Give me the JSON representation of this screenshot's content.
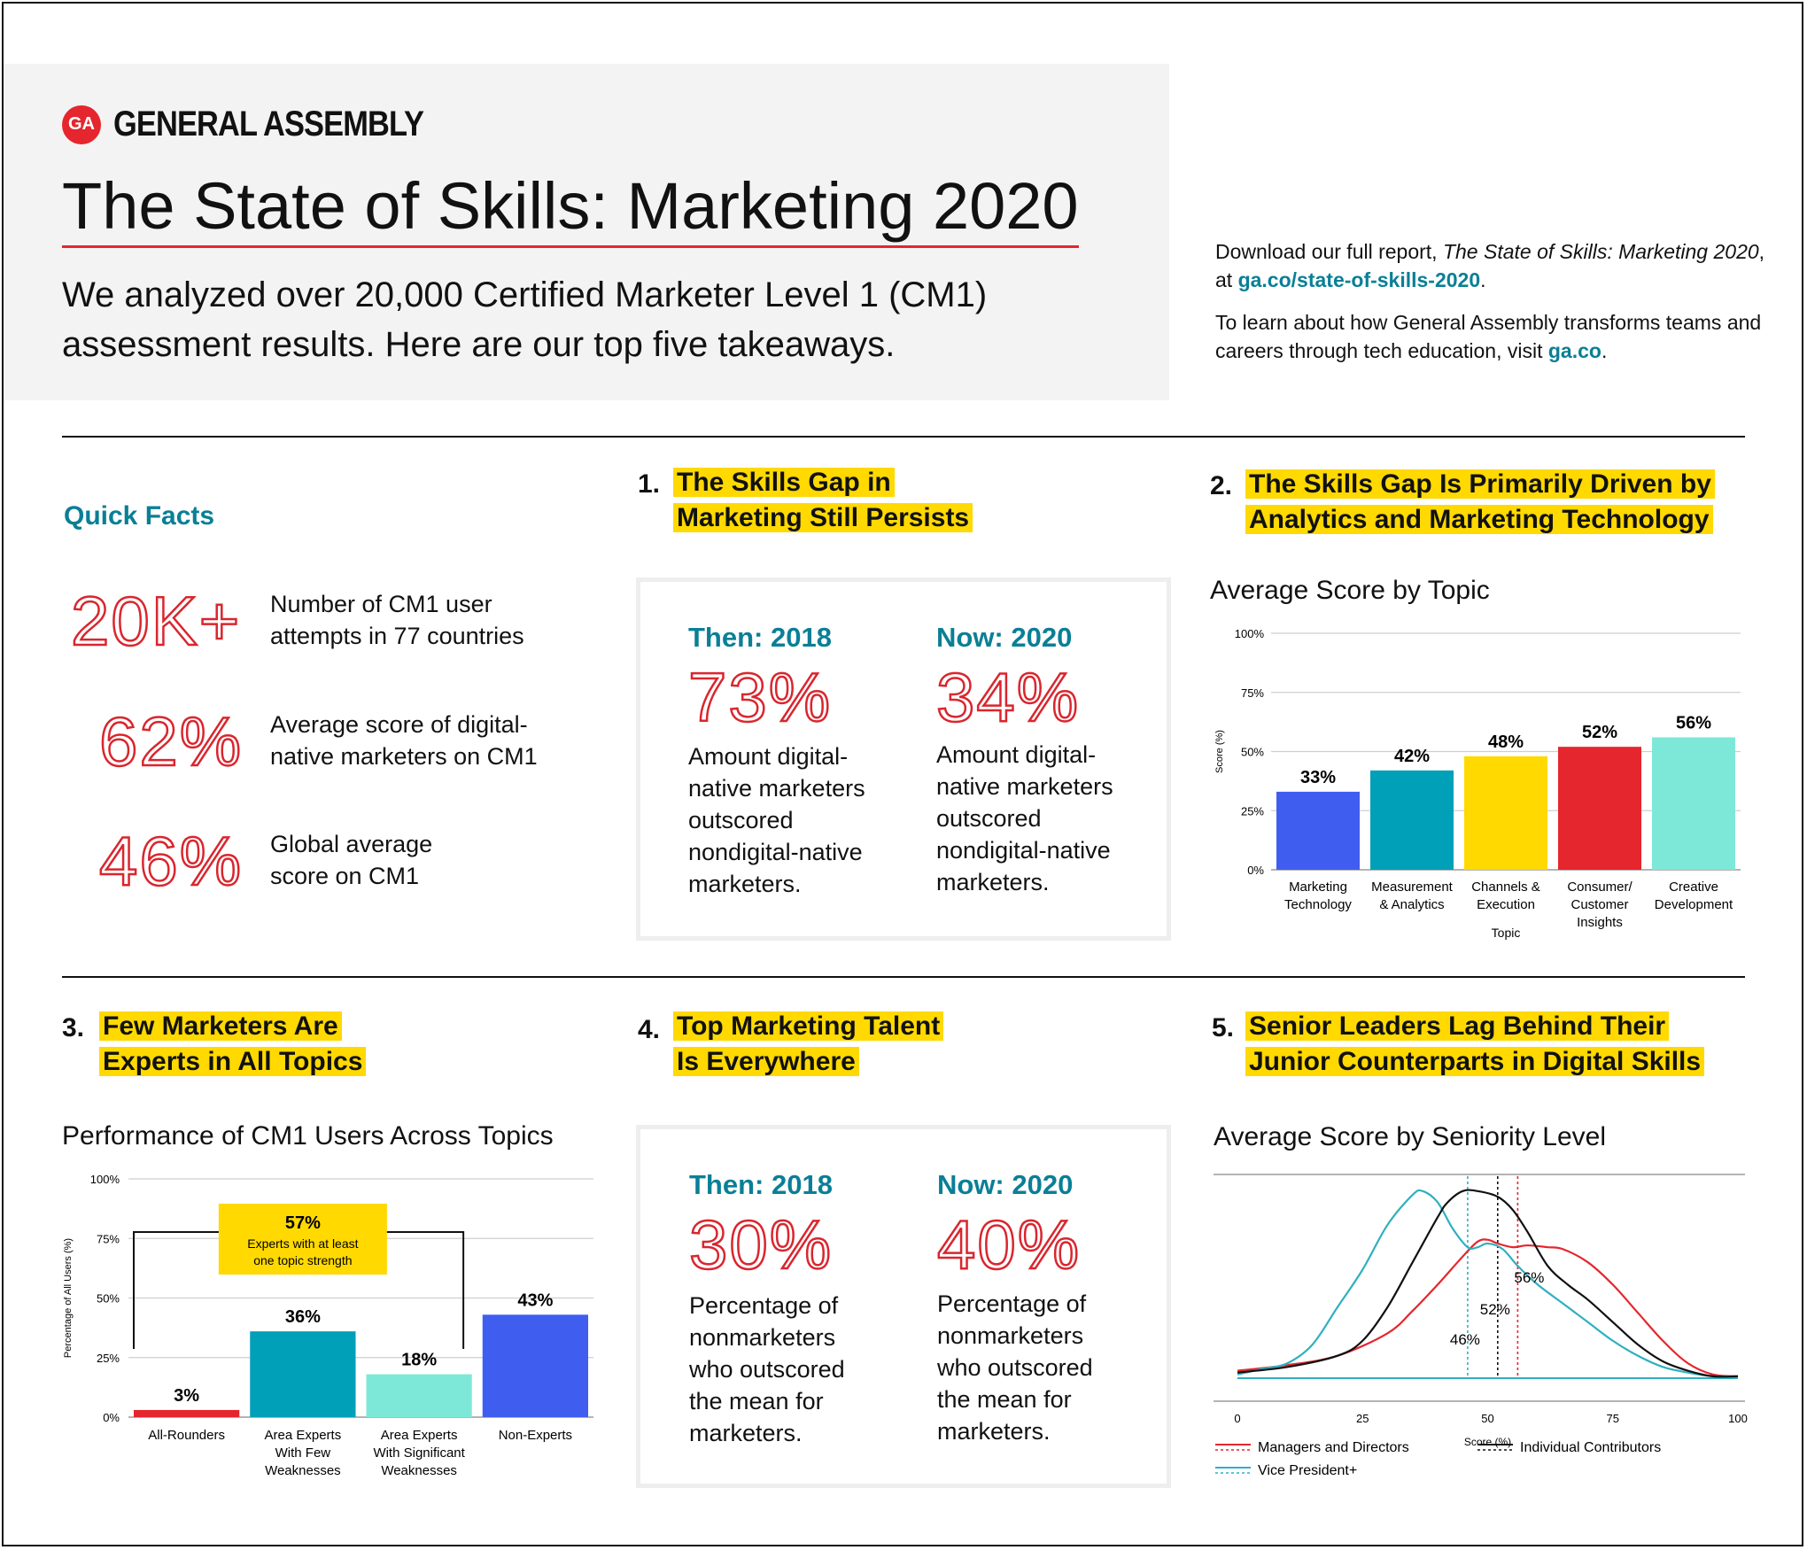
{
  "header": {
    "logo_badge": "GA",
    "logo_text": "GENERAL ASSEMBLY",
    "title": "The State of Skills: Marketing 2020",
    "subtitle": "We analyzed over 20,000 Certified Marketer Level 1 (CM1) assessment results. Here are our top five takeaways.",
    "download_pre": "Download our full report, ",
    "download_italic": "The State of Skills: Marketing 2020",
    "download_mid": ", at ",
    "download_link": "ga.co/state-of-skills-2020",
    "download_end": ".",
    "learn_pre": "To learn about how General Assembly transforms teams and careers through tech education, visit ",
    "learn_link": "ga.co",
    "learn_end": "."
  },
  "quick_facts": {
    "title": "Quick Facts",
    "items": [
      {
        "value": "20K+",
        "text": "Number of CM1 user attempts in 77 countries"
      },
      {
        "value": "62%",
        "text": "Average score of digital-native marketers on CM1"
      },
      {
        "value": "46%",
        "text": "Global average score on CM1"
      }
    ]
  },
  "section1": {
    "num": "1.",
    "title_line1": "The Skills Gap in",
    "title_line2": "Marketing Still Persists",
    "then_label": "Then: 2018",
    "then_value": "73%",
    "then_text": "Amount digital-native marketers outscored nondigital-native marketers.",
    "now_label": "Now: 2020",
    "now_value": "34%",
    "now_text": "Amount digital-native marketers outscored nondigital-native marketers."
  },
  "section2": {
    "num": "2.",
    "title_line1": "The Skills Gap Is Primarily Driven by",
    "title_line2": "Analytics and Marketing Technology",
    "chart_title": "Average Score by Topic"
  },
  "section3": {
    "num": "3.",
    "title_line1": "Few Marketers Are",
    "title_line2": "Experts in All Topics",
    "chart_title": "Performance of CM1 Users Across Topics",
    "callout_value": "57%",
    "callout_text_line1": "Experts with at least",
    "callout_text_line2": "one topic strength"
  },
  "section4": {
    "num": "4.",
    "title_line1": "Top Marketing Talent",
    "title_line2": "Is Everywhere",
    "then_label": "Then: 2018",
    "then_value": "30%",
    "then_text": "Percentage of nonmarketers who outscored the mean for marketers.",
    "now_label": "Now: 2020",
    "now_value": "40%",
    "now_text": "Percentage of nonmarketers who outscored the mean for marketers."
  },
  "section5": {
    "num": "5.",
    "title_line1": "Senior Leaders Lag Behind Their",
    "title_line2": "Junior Counterparts in Digital Skills",
    "chart_title": "Average Score by Seniority Level"
  },
  "colors": {
    "red": "#e5262e",
    "teal": "#0a7f96",
    "yellow": "#ffd900",
    "blue": "#3f5ef0",
    "mid_teal": "#00a0b8",
    "mint": "#7ee8d8",
    "curve_teal": "#2fb0c0",
    "black": "#111111"
  },
  "chart_data": [
    {
      "type": "bar",
      "title": "Average Score by Topic",
      "xlabel": "Topic",
      "ylabel": "Score (%)",
      "ylim": [
        0,
        100
      ],
      "yticks": [
        "0%",
        "25%",
        "50%",
        "75%",
        "100%"
      ],
      "categories": [
        [
          "Marketing",
          "Technology"
        ],
        [
          "Measurement",
          "& Analytics"
        ],
        [
          "Channels &",
          "Execution"
        ],
        [
          "Consumer/",
          "Customer",
          "Insights"
        ],
        [
          "Creative",
          "Development"
        ]
      ],
      "values": [
        33,
        42,
        48,
        52,
        56
      ],
      "labels": [
        "33%",
        "42%",
        "48%",
        "52%",
        "56%"
      ],
      "colors": [
        "#3f5ef0",
        "#00a0b8",
        "#ffd900",
        "#e5262e",
        "#7ee8d8"
      ],
      "grid": true
    },
    {
      "type": "bar",
      "title": "Performance of CM1 Users Across Topics",
      "ylabel": "Percentage of All Users (%)",
      "ylim": [
        0,
        100
      ],
      "yticks": [
        "0%",
        "25%",
        "50%",
        "75%",
        "100%"
      ],
      "categories": [
        [
          "All-Rounders"
        ],
        [
          "Area Experts",
          "With Few",
          "Weaknesses"
        ],
        [
          "Area Experts",
          "With Significant",
          "Weaknesses"
        ],
        [
          "Non-Experts"
        ]
      ],
      "values": [
        3,
        36,
        18,
        43
      ],
      "labels": [
        "3%",
        "36%",
        "18%",
        "43%"
      ],
      "colors": [
        "#e5262e",
        "#00a0b8",
        "#7ee8d8",
        "#3f5ef0"
      ],
      "grid": true
    },
    {
      "type": "line",
      "title": "Average Score by Seniority Level",
      "xlabel": "Score (%)",
      "xlim": [
        0,
        100
      ],
      "xticks": [
        0,
        25,
        50,
        75,
        100
      ],
      "series": [
        {
          "name": "Managers and Directors",
          "color": "#e5262e",
          "x": [
            0,
            10,
            20,
            30,
            35,
            40,
            45,
            48,
            50,
            52,
            55,
            58,
            62,
            65,
            70,
            75,
            80,
            85,
            90,
            95,
            100
          ],
          "y": [
            0.04,
            0.07,
            0.12,
            0.24,
            0.36,
            0.5,
            0.65,
            0.73,
            0.74,
            0.72,
            0.7,
            0.71,
            0.7,
            0.69,
            0.62,
            0.5,
            0.35,
            0.2,
            0.08,
            0.02,
            0.01
          ],
          "mean": 56
        },
        {
          "name": "Vice President+",
          "color": "#2fb0c0",
          "x": [
            0,
            5,
            10,
            15,
            20,
            25,
            30,
            35,
            37,
            40,
            43,
            46,
            48,
            50,
            53,
            56,
            60,
            65,
            70,
            75,
            80,
            85,
            90,
            95,
            100
          ],
          "y": [
            0.02,
            0.05,
            0.08,
            0.18,
            0.38,
            0.58,
            0.82,
            0.98,
            1.0,
            0.94,
            0.8,
            0.7,
            0.7,
            0.72,
            0.69,
            0.6,
            0.5,
            0.4,
            0.3,
            0.2,
            0.12,
            0.06,
            0.03,
            0.01,
            0.01
          ],
          "mean": 46
        },
        {
          "name": "Individual Contributors",
          "color": "#111111",
          "x": [
            0,
            10,
            20,
            25,
            30,
            35,
            40,
            42,
            45,
            48,
            52,
            55,
            58,
            62,
            66,
            70,
            75,
            80,
            85,
            90,
            95,
            100
          ],
          "y": [
            0.03,
            0.06,
            0.12,
            0.2,
            0.38,
            0.62,
            0.86,
            0.94,
            1.0,
            1.0,
            0.97,
            0.9,
            0.78,
            0.6,
            0.5,
            0.42,
            0.3,
            0.18,
            0.09,
            0.04,
            0.01,
            0.01
          ],
          "mean": 52
        }
      ],
      "annotations": [
        "56%",
        "52%",
        "46%"
      ]
    }
  ]
}
